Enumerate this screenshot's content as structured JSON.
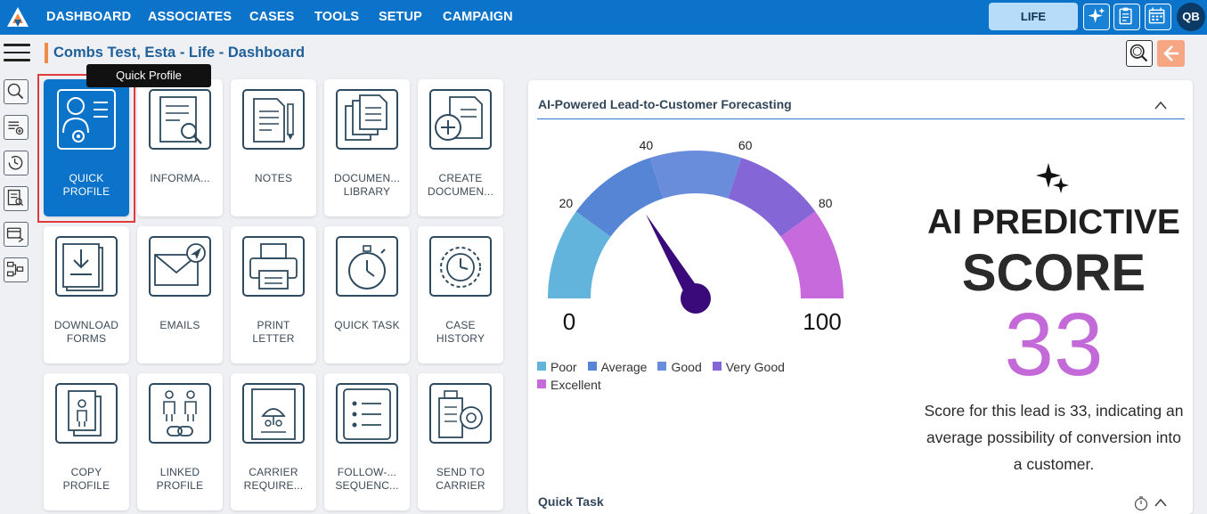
{
  "nav": {
    "items": [
      "DASHBOARD",
      "ASSOCIATES",
      "CASES",
      "TOOLS",
      "SETUP",
      "CAMPAIGN"
    ],
    "life_label": "LIFE",
    "avatar_initials": "QB"
  },
  "header": {
    "title": "Combs Test, Esta - Life - Dashboard"
  },
  "tooltip": "Quick Profile",
  "tiles": [
    {
      "label": "QUICK\nPROFILE",
      "icon": "quick-profile-icon"
    },
    {
      "label": "INFORMA...",
      "icon": "information-icon"
    },
    {
      "label": "NOTES",
      "icon": "notes-icon"
    },
    {
      "label": "DOCUMEN...\nLIBRARY",
      "icon": "document-library-icon"
    },
    {
      "label": "CREATE\nDOCUMEN...",
      "icon": "create-document-icon"
    },
    {
      "label": "DOWNLOAD\nFORMS",
      "icon": "download-forms-icon"
    },
    {
      "label": "EMAILS",
      "icon": "emails-icon"
    },
    {
      "label": "PRINT\nLETTER",
      "icon": "print-letter-icon"
    },
    {
      "label": "QUICK TASK",
      "icon": "quick-task-icon"
    },
    {
      "label": "CASE\nHISTORY",
      "icon": "case-history-icon"
    },
    {
      "label": "COPY\nPROFILE",
      "icon": "copy-profile-icon"
    },
    {
      "label": "LINKED\nPROFILE",
      "icon": "linked-profile-icon"
    },
    {
      "label": "CARRIER\nREQUIRE...",
      "icon": "carrier-requirements-icon"
    },
    {
      "label": "FOLLOW-...\nSEQUENC...",
      "icon": "follow-up-sequence-icon"
    },
    {
      "label": "SEND TO\nCARRIER",
      "icon": "send-to-carrier-icon"
    }
  ],
  "forecast": {
    "title": "AI-Powered Lead-to-Customer Forecasting",
    "gauge": {
      "min": 0,
      "max": 100,
      "value": 33,
      "min_label": "0",
      "max_label": "100",
      "tick_labels": [
        "20",
        "40",
        "60",
        "80"
      ],
      "bands": [
        {
          "name": "Poor",
          "color": "#62b4dd"
        },
        {
          "name": "Average",
          "color": "#5585d4"
        },
        {
          "name": "Good",
          "color": "#6a8ddb"
        },
        {
          "name": "Very Good",
          "color": "#8466d6"
        },
        {
          "name": "Excellent",
          "color": "#c76adb"
        }
      ],
      "needle_color": "#3a0a7a"
    },
    "ai_line1": "AI PREDICTIVE",
    "ai_line2": "SCORE",
    "score": "33",
    "score_color": "#c46ad8",
    "description": "Score for this lead is 33, indicating an average possibility of conversion into a customer."
  },
  "quick_task": {
    "title": "Quick Task"
  }
}
